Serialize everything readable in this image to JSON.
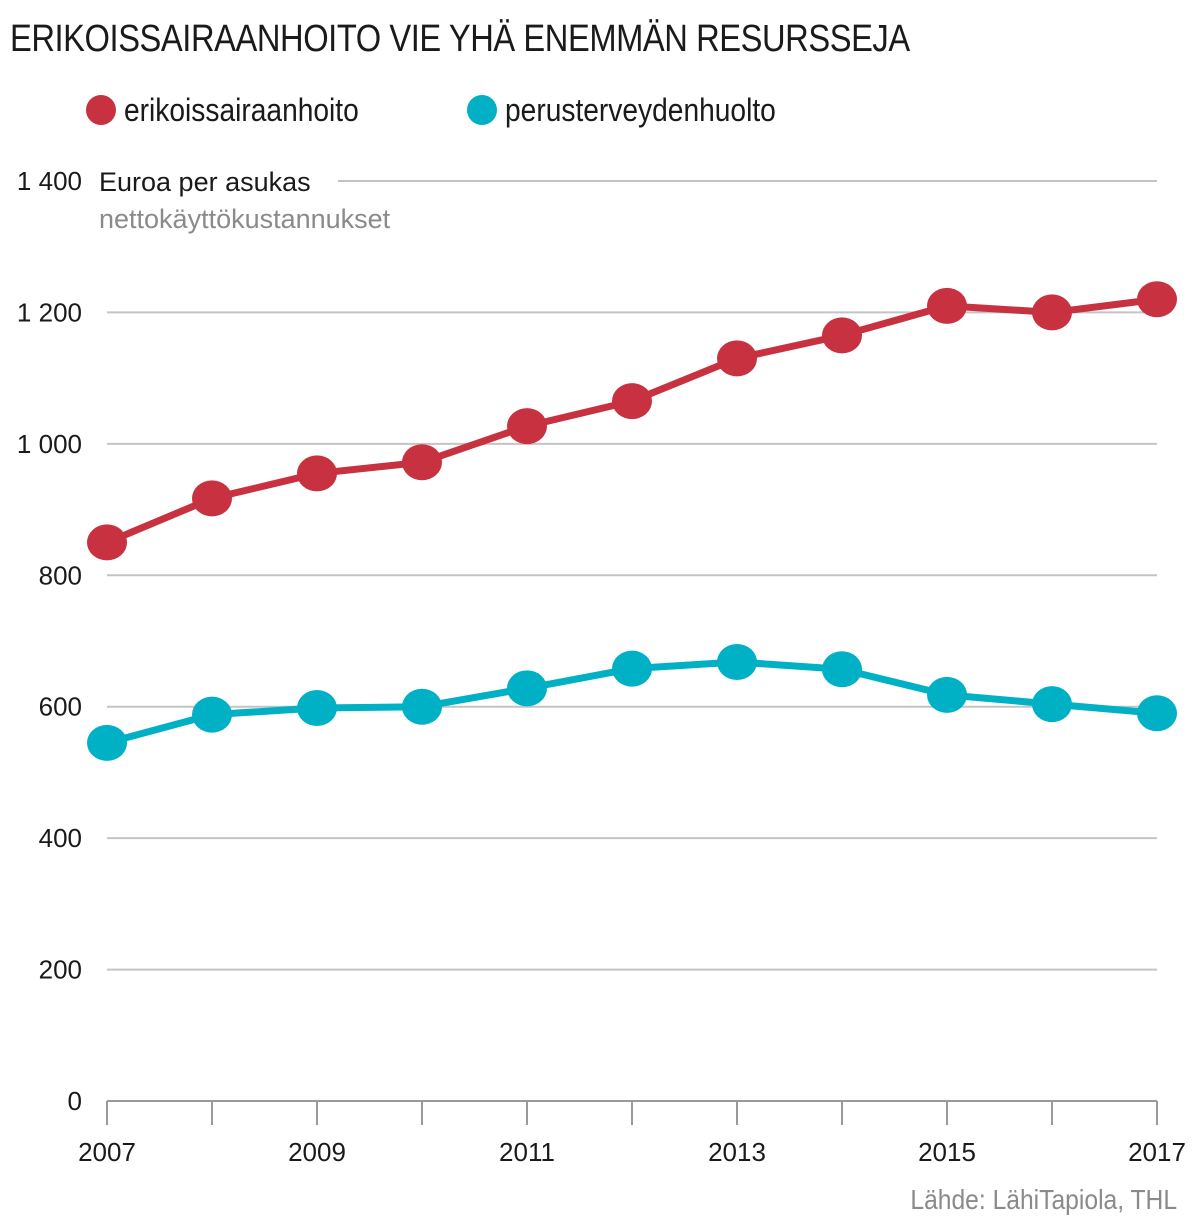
{
  "chart_data": {
    "type": "line",
    "title": "ERIKOISSAIRAANHOITO VIE YHÄ ENEMMÄN RESURSSEJA",
    "ylabel": "Euroa per asukas",
    "ylabel_sub": "nettokäyttökustannukset",
    "source": "Lähde: LähiTapiola, THL",
    "x": [
      2007,
      2008,
      2009,
      2010,
      2011,
      2012,
      2013,
      2014,
      2015,
      2016,
      2017
    ],
    "x_tick_labels": [
      "2007",
      "2009",
      "2011",
      "2013",
      "2015",
      "2017"
    ],
    "x_tick_values": [
      2007,
      2009,
      2011,
      2013,
      2015,
      2017
    ],
    "ylim": [
      0,
      1400
    ],
    "y_ticks": [
      0,
      200,
      400,
      600,
      800,
      1000,
      1200,
      1400
    ],
    "y_tick_labels": [
      "0",
      "200",
      "400",
      "600",
      "800",
      "1 000",
      "1 200",
      "1 400"
    ],
    "grid": true,
    "legend_position": "top-left",
    "series": [
      {
        "name": "erikoissairaanhoito",
        "color": "#c8313f",
        "values": [
          850,
          917,
          955,
          972,
          1027,
          1065,
          1130,
          1165,
          1210,
          1200,
          1220
        ]
      },
      {
        "name": "perusterveydenhuolto",
        "color": "#00b1c6",
        "values": [
          545,
          588,
          598,
          600,
          628,
          658,
          668,
          657,
          618,
          604,
          590
        ]
      }
    ]
  }
}
